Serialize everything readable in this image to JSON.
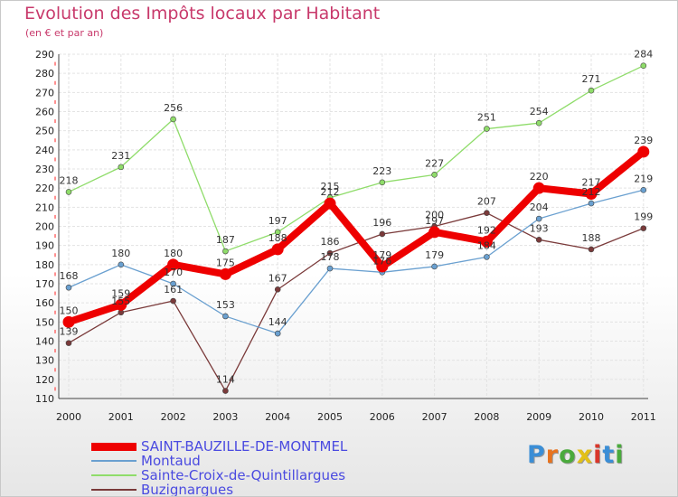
{
  "title": "Evolution des Impôts locaux par Habitant",
  "subtitle": "(en € et par an)",
  "logo": {
    "text": "Proxiti",
    "colors": [
      "#3b8ed6",
      "#e8731e",
      "#4aaa3c",
      "#e2c018",
      "#d9372b",
      "#3b8ed6",
      "#4aaa3c"
    ]
  },
  "chart_data": {
    "type": "line",
    "x": [
      "2000",
      "2001",
      "2002",
      "2003",
      "2004",
      "2005",
      "2006",
      "2007",
      "2008",
      "2009",
      "2010",
      "2011"
    ],
    "ylim": [
      110,
      290
    ],
    "yticks": [
      110,
      120,
      130,
      140,
      150,
      160,
      170,
      180,
      190,
      200,
      210,
      220,
      230,
      240,
      250,
      260,
      270,
      280,
      290
    ],
    "grid": true,
    "legend_position": "bottom-left",
    "series": [
      {
        "name": "SAINT-BAUZILLE-DE-MONTMEL",
        "color": "#ee0000",
        "values": [
          150,
          159,
          180,
          175,
          188,
          212,
          179,
          197,
          192,
          220,
          217,
          239
        ],
        "labels": [
          "150",
          "159",
          "180",
          "175",
          "188",
          "212",
          "179",
          "197",
          "192",
          "220",
          "217",
          "239"
        ]
      },
      {
        "name": "Montaud",
        "color": "#6aa0d0",
        "values": [
          168,
          180,
          170,
          153,
          144,
          178,
          176,
          179,
          184,
          204,
          212,
          219
        ],
        "labels": [
          "168",
          "180",
          "170",
          "153",
          "144",
          "178",
          "176",
          "179",
          "184",
          "204",
          "212",
          "219"
        ]
      },
      {
        "name": "Sainte-Croix-de-Quintillargues",
        "color": "#8fdc6a",
        "values": [
          218,
          231,
          256,
          187,
          197,
          215,
          223,
          227,
          251,
          254,
          271,
          284
        ],
        "labels": [
          "218",
          "231",
          "256",
          "187",
          "197",
          "215",
          "223",
          "227",
          "251",
          "254",
          "271",
          "284"
        ]
      },
      {
        "name": "Buzignargues",
        "color": "#7a3a3a",
        "values": [
          139,
          155,
          161,
          114,
          167,
          186,
          196,
          200,
          207,
          193,
          188,
          199
        ],
        "labels": [
          "139",
          "155",
          "161",
          "114",
          "167",
          "186",
          "196",
          "200",
          "207",
          "193",
          "188",
          "199"
        ]
      }
    ]
  }
}
